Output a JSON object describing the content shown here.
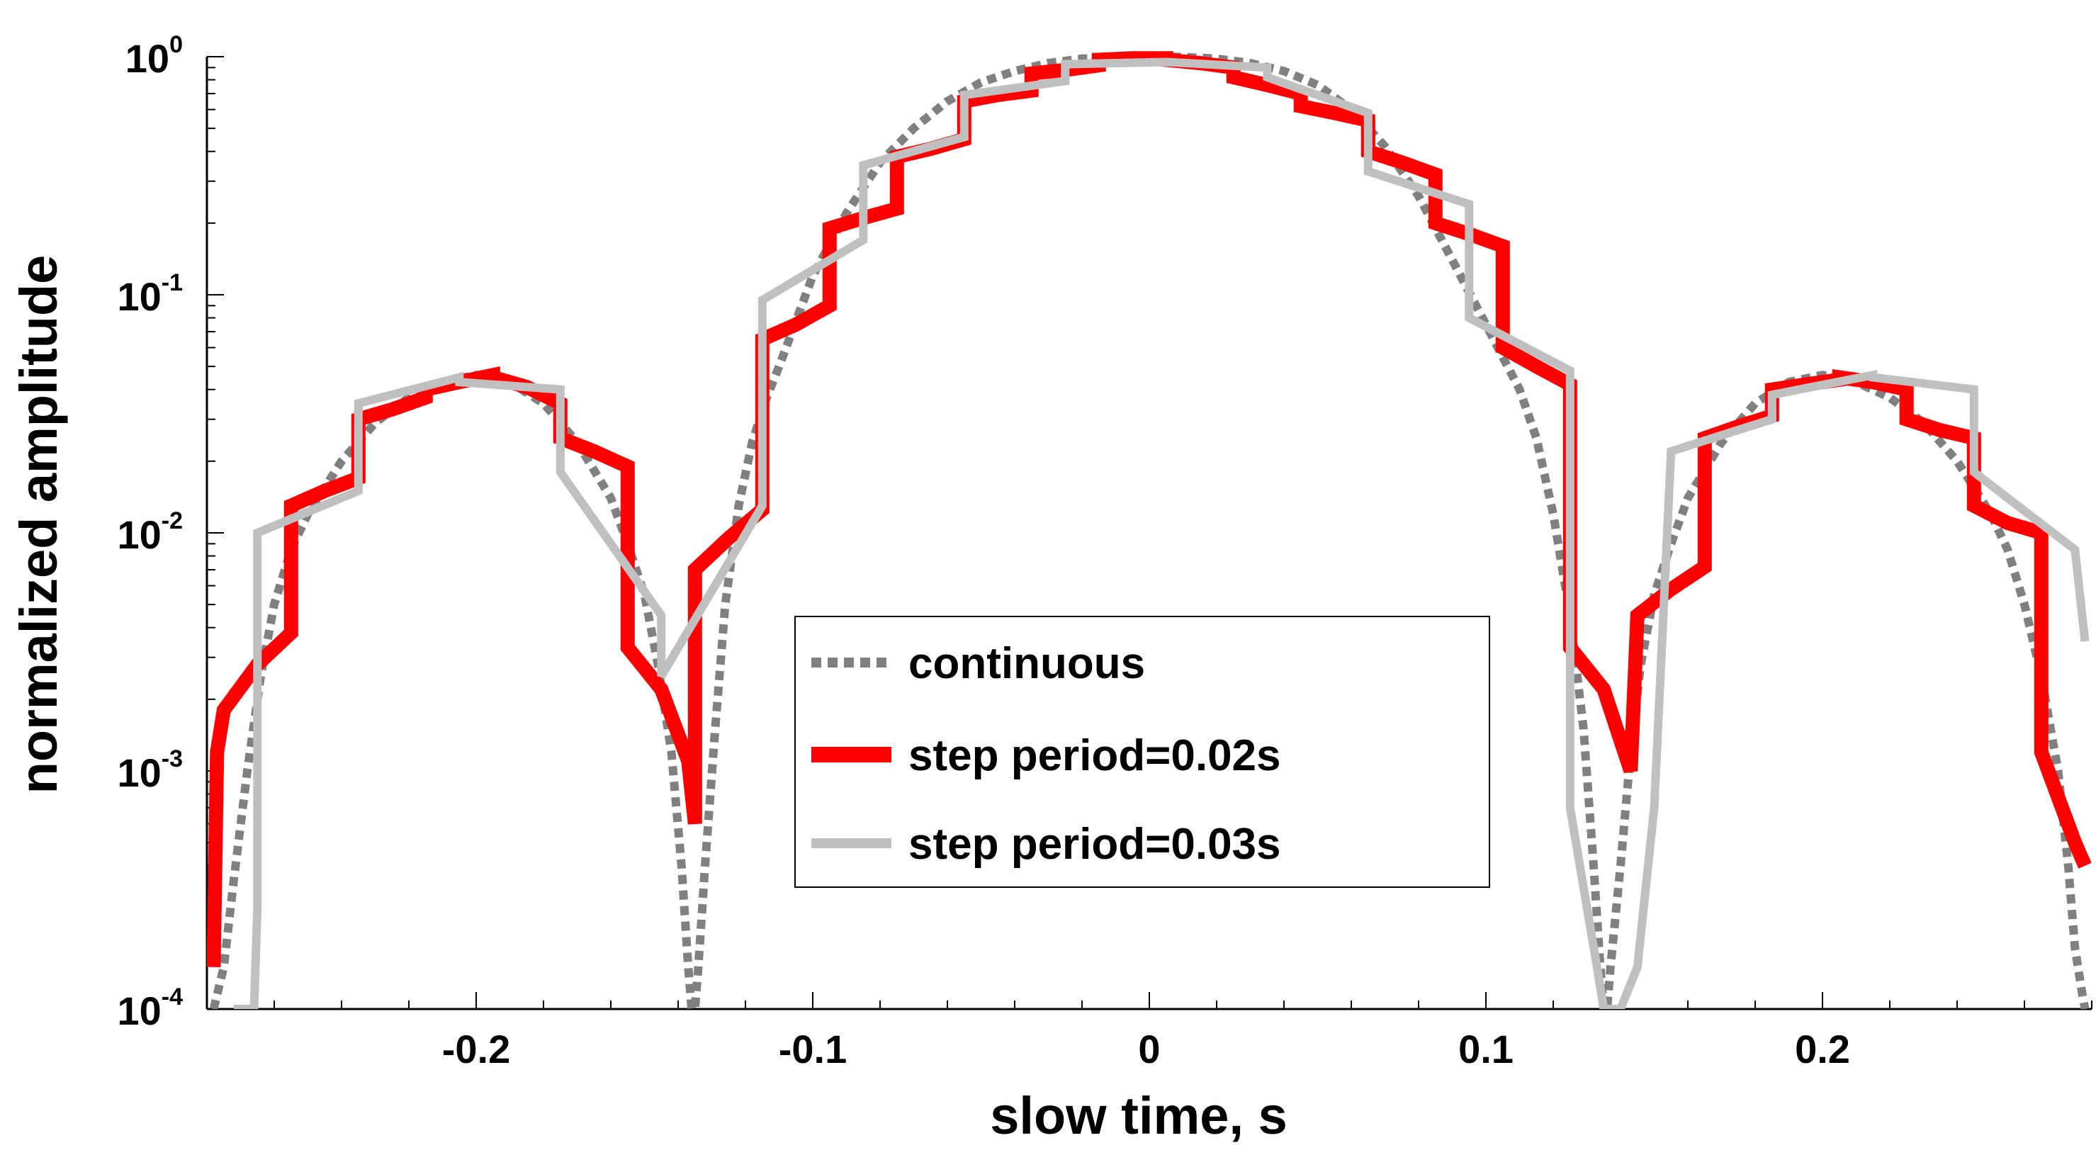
{
  "chart_data": {
    "type": "line",
    "xlabel": "slow time, s",
    "ylabel": "normalized amplitude",
    "xlim": [
      -0.28,
      0.28
    ],
    "ylim": [
      0.0001,
      1
    ],
    "yscale": "log",
    "x_tick_values": [
      -0.2,
      -0.1,
      0,
      0.1,
      0.2
    ],
    "x_tick_labels": [
      "-0.2",
      "-0.1",
      "0",
      "0.1",
      "0.2"
    ],
    "y_tick_values": [
      0.0001,
      0.001,
      0.01,
      0.1,
      1
    ],
    "y_tick_base": [
      "10",
      "10",
      "10",
      "10",
      "10"
    ],
    "y_tick_exp": [
      "-4",
      "-3",
      "-2",
      "-1",
      "0"
    ],
    "grid": false,
    "legend_position": "center-right",
    "series": [
      {
        "name": "continuous",
        "color": "#808080",
        "style": "dotted",
        "x": [
          -0.278,
          -0.275,
          -0.272,
          -0.268,
          -0.264,
          -0.26,
          -0.255,
          -0.25,
          -0.24,
          -0.23,
          -0.22,
          -0.21,
          -0.2,
          -0.19,
          -0.18,
          -0.17,
          -0.16,
          -0.155,
          -0.15,
          -0.146,
          -0.142,
          -0.139,
          -0.137,
          -0.136,
          -0.135,
          -0.134,
          -0.132,
          -0.129,
          -0.126,
          -0.122,
          -0.118,
          -0.114,
          -0.11,
          -0.1,
          -0.09,
          -0.08,
          -0.07,
          -0.06,
          -0.05,
          -0.04,
          -0.03,
          -0.02,
          -0.01,
          0,
          0.01,
          0.02,
          0.03,
          0.04,
          0.05,
          0.06,
          0.07,
          0.08,
          0.09,
          0.1,
          0.11,
          0.115,
          0.12,
          0.125,
          0.129,
          0.132,
          0.134,
          0.135,
          0.136,
          0.137,
          0.14,
          0.143,
          0.146,
          0.15,
          0.155,
          0.16,
          0.17,
          0.18,
          0.19,
          0.2,
          0.21,
          0.22,
          0.23,
          0.24,
          0.25,
          0.255,
          0.26,
          0.265,
          0.27,
          0.273,
          0.275,
          0.277,
          0.278
        ],
        "y": [
          0.0001,
          0.00015,
          0.00035,
          0.001,
          0.0025,
          0.005,
          0.0085,
          0.012,
          0.02,
          0.029,
          0.037,
          0.043,
          0.046,
          0.043,
          0.035,
          0.024,
          0.014,
          0.009,
          0.0055,
          0.0028,
          0.0012,
          0.0004,
          0.00015,
          0.0001,
          0.0001,
          0.00015,
          0.0004,
          0.0015,
          0.005,
          0.013,
          0.024,
          0.036,
          0.05,
          0.12,
          0.22,
          0.36,
          0.5,
          0.65,
          0.78,
          0.87,
          0.94,
          0.98,
          0.997,
          1,
          0.997,
          0.98,
          0.94,
          0.87,
          0.76,
          0.6,
          0.42,
          0.26,
          0.14,
          0.075,
          0.04,
          0.025,
          0.012,
          0.0045,
          0.0015,
          0.0004,
          0.00015,
          0.0001,
          0.0001,
          0.00015,
          0.0004,
          0.0012,
          0.0028,
          0.0055,
          0.009,
          0.014,
          0.024,
          0.035,
          0.043,
          0.046,
          0.043,
          0.037,
          0.029,
          0.02,
          0.012,
          0.0085,
          0.005,
          0.0025,
          0.001,
          0.0004,
          0.00018,
          0.00012,
          0.0001
        ]
      },
      {
        "name": "step period=0.02s",
        "color": "#ff0000",
        "style": "solid-thick",
        "x": [
          -0.278,
          -0.277,
          -0.275,
          -0.275,
          -0.265,
          -0.255,
          -0.255,
          -0.245,
          -0.235,
          -0.235,
          -0.225,
          -0.215,
          -0.215,
          -0.205,
          -0.195,
          -0.195,
          -0.185,
          -0.175,
          -0.175,
          -0.165,
          -0.155,
          -0.155,
          -0.145,
          -0.137,
          -0.135,
          -0.135,
          -0.125,
          -0.115,
          -0.115,
          -0.105,
          -0.095,
          -0.095,
          -0.085,
          -0.075,
          -0.075,
          -0.065,
          -0.055,
          -0.055,
          -0.045,
          -0.035,
          -0.035,
          -0.025,
          -0.015,
          -0.015,
          -0.005,
          0.005,
          0.005,
          0.015,
          0.025,
          0.025,
          0.035,
          0.045,
          0.045,
          0.055,
          0.065,
          0.065,
          0.075,
          0.085,
          0.085,
          0.095,
          0.105,
          0.105,
          0.115,
          0.125,
          0.125,
          0.135,
          0.143,
          0.145,
          0.145,
          0.155,
          0.165,
          0.165,
          0.175,
          0.185,
          0.185,
          0.195,
          0.205,
          0.205,
          0.215,
          0.225,
          0.225,
          0.235,
          0.245,
          0.245,
          0.255,
          0.265,
          0.265,
          0.275,
          0.278
        ],
        "y": [
          0.00015,
          0.0012,
          0.0018,
          0.0018,
          0.0028,
          0.0038,
          0.013,
          0.015,
          0.017,
          0.03,
          0.033,
          0.037,
          0.04,
          0.043,
          0.046,
          0.045,
          0.041,
          0.035,
          0.025,
          0.022,
          0.019,
          0.0033,
          0.0022,
          0.0011,
          0.0006,
          0.007,
          0.0095,
          0.0125,
          0.065,
          0.075,
          0.09,
          0.19,
          0.21,
          0.23,
          0.38,
          0.41,
          0.45,
          0.65,
          0.69,
          0.72,
          0.85,
          0.88,
          0.92,
          0.97,
          0.985,
          0.985,
          0.97,
          0.94,
          0.9,
          0.82,
          0.76,
          0.7,
          0.62,
          0.58,
          0.54,
          0.4,
          0.36,
          0.32,
          0.2,
          0.18,
          0.16,
          0.06,
          0.05,
          0.042,
          0.0033,
          0.0022,
          0.001,
          0.0045,
          0.0045,
          0.0058,
          0.0072,
          0.025,
          0.028,
          0.031,
          0.04,
          0.042,
          0.044,
          0.045,
          0.043,
          0.04,
          0.03,
          0.027,
          0.025,
          0.013,
          0.011,
          0.01,
          0.0012,
          0.0005,
          0.0004
        ]
      },
      {
        "name": "step period=0.03s",
        "color": "#c0c0c0",
        "style": "solid",
        "x": [
          -0.272,
          -0.266,
          -0.265,
          -0.265,
          -0.235,
          -0.235,
          -0.205,
          -0.205,
          -0.175,
          -0.175,
          -0.145,
          -0.145,
          -0.115,
          -0.115,
          -0.085,
          -0.085,
          -0.055,
          -0.055,
          -0.025,
          -0.025,
          0.005,
          0.005,
          0.035,
          0.035,
          0.065,
          0.065,
          0.095,
          0.095,
          0.125,
          0.125,
          0.133,
          0.135,
          0.14,
          0.145,
          0.15,
          0.155,
          0.155,
          0.185,
          0.185,
          0.215,
          0.215,
          0.245,
          0.245,
          0.275,
          0.278
        ],
        "y": [
          0.0001,
          0.0001,
          0.00027,
          0.01,
          0.015,
          0.035,
          0.045,
          0.043,
          0.04,
          0.018,
          0.0045,
          0.0025,
          0.013,
          0.095,
          0.17,
          0.35,
          0.46,
          0.69,
          0.79,
          0.93,
          0.95,
          0.95,
          0.9,
          0.82,
          0.58,
          0.33,
          0.24,
          0.08,
          0.048,
          0.0007,
          0.00015,
          0.0001,
          0.0001,
          0.00015,
          0.0007,
          0.022,
          0.022,
          0.03,
          0.038,
          0.046,
          0.045,
          0.04,
          0.018,
          0.0085,
          0.0035
        ]
      }
    ]
  }
}
